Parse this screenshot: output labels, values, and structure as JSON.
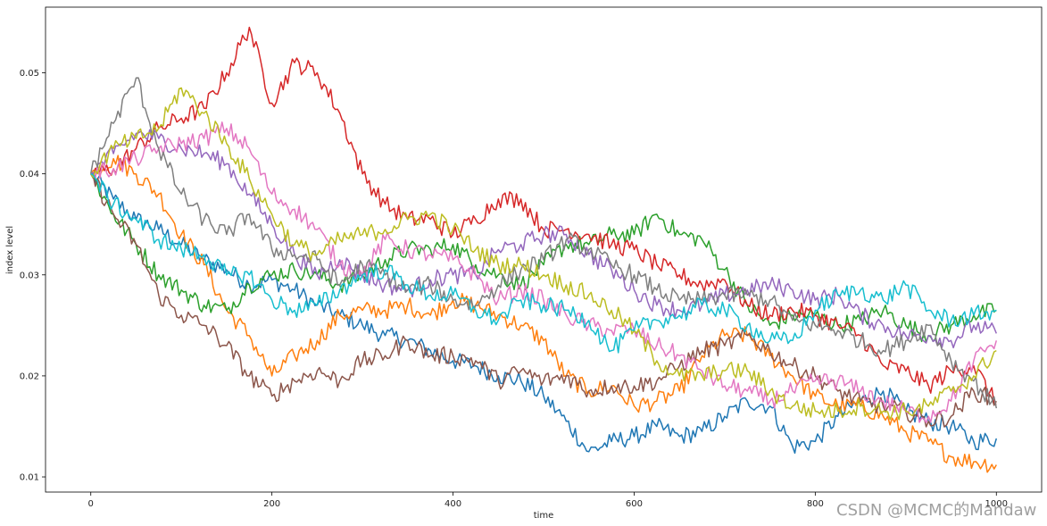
{
  "chart_data": {
    "type": "line",
    "title": "",
    "xlabel": "time",
    "ylabel": "index level",
    "xlim": [
      -50,
      1050
    ],
    "ylim": [
      0.0085,
      0.0565
    ],
    "xticks": [
      0,
      200,
      400,
      600,
      800,
      1000
    ],
    "yticks": [
      0.01,
      0.02,
      0.03,
      0.04,
      0.05
    ],
    "xtick_labels": [
      "0",
      "200",
      "400",
      "600",
      "800",
      "1000"
    ],
    "ytick_labels": [
      "0.01",
      "0.02",
      "0.03",
      "0.04",
      "0.05"
    ],
    "grid": false,
    "legend": "none",
    "colors": [
      "#1f77b4",
      "#ff7f0e",
      "#2ca02c",
      "#d62728",
      "#9467bd",
      "#8c564b",
      "#e377c2",
      "#7f7f7f",
      "#bcbd22",
      "#17becf"
    ],
    "x": [
      0,
      25,
      50,
      75,
      100,
      125,
      150,
      175,
      200,
      225,
      250,
      275,
      300,
      325,
      350,
      375,
      400,
      425,
      450,
      475,
      500,
      525,
      550,
      575,
      600,
      625,
      650,
      675,
      700,
      725,
      750,
      775,
      800,
      825,
      850,
      875,
      900,
      925,
      950,
      975,
      1000
    ],
    "series": [
      {
        "values": [
          0.04,
          0.0375,
          0.0355,
          0.0345,
          0.033,
          0.0315,
          0.0305,
          0.029,
          0.0295,
          0.0285,
          0.027,
          0.026,
          0.025,
          0.024,
          0.0235,
          0.0225,
          0.0215,
          0.021,
          0.02,
          0.0195,
          0.018,
          0.0155,
          0.0125,
          0.0135,
          0.014,
          0.015,
          0.014,
          0.0145,
          0.016,
          0.0175,
          0.017,
          0.013,
          0.0135,
          0.016,
          0.0175,
          0.0185,
          0.0165,
          0.0155,
          0.015,
          0.0135,
          0.0138
        ]
      },
      {
        "values": [
          0.04,
          0.0415,
          0.04,
          0.038,
          0.034,
          0.031,
          0.0265,
          0.024,
          0.02,
          0.022,
          0.0235,
          0.026,
          0.0265,
          0.0265,
          0.027,
          0.026,
          0.0275,
          0.027,
          0.026,
          0.025,
          0.0235,
          0.02,
          0.0185,
          0.019,
          0.017,
          0.0175,
          0.0185,
          0.022,
          0.024,
          0.024,
          0.022,
          0.02,
          0.018,
          0.017,
          0.017,
          0.016,
          0.0145,
          0.0135,
          0.012,
          0.0115,
          0.0112
        ]
      },
      {
        "values": [
          0.04,
          0.036,
          0.033,
          0.03,
          0.0285,
          0.027,
          0.0265,
          0.029,
          0.03,
          0.0305,
          0.03,
          0.029,
          0.03,
          0.0315,
          0.0325,
          0.0325,
          0.033,
          0.031,
          0.03,
          0.029,
          0.031,
          0.033,
          0.033,
          0.034,
          0.034,
          0.036,
          0.034,
          0.0335,
          0.0305,
          0.027,
          0.025,
          0.026,
          0.026,
          0.025,
          0.0255,
          0.0265,
          0.025,
          0.024,
          0.025,
          0.026,
          0.0265
        ]
      },
      {
        "values": [
          0.04,
          0.0405,
          0.0425,
          0.0445,
          0.0455,
          0.0465,
          0.05,
          0.0545,
          0.047,
          0.051,
          0.05,
          0.046,
          0.04,
          0.037,
          0.0355,
          0.0355,
          0.034,
          0.0355,
          0.0375,
          0.0375,
          0.0345,
          0.0345,
          0.034,
          0.033,
          0.0325,
          0.031,
          0.03,
          0.029,
          0.0295,
          0.027,
          0.026,
          0.0265,
          0.026,
          0.025,
          0.024,
          0.021,
          0.0205,
          0.019,
          0.0205,
          0.021,
          0.0172
        ]
      },
      {
        "values": [
          0.04,
          0.042,
          0.044,
          0.0435,
          0.0425,
          0.042,
          0.041,
          0.038,
          0.035,
          0.032,
          0.03,
          0.0315,
          0.03,
          0.029,
          0.0285,
          0.0295,
          0.03,
          0.03,
          0.0325,
          0.033,
          0.034,
          0.034,
          0.032,
          0.0305,
          0.0285,
          0.027,
          0.0265,
          0.027,
          0.028,
          0.0285,
          0.029,
          0.0285,
          0.0275,
          0.028,
          0.026,
          0.025,
          0.024,
          0.024,
          0.0235,
          0.025,
          0.0242
        ]
      },
      {
        "values": [
          0.04,
          0.036,
          0.033,
          0.028,
          0.026,
          0.025,
          0.023,
          0.02,
          0.018,
          0.0195,
          0.0205,
          0.0195,
          0.0215,
          0.022,
          0.0235,
          0.022,
          0.022,
          0.0215,
          0.0195,
          0.0205,
          0.0195,
          0.02,
          0.0185,
          0.019,
          0.019,
          0.0195,
          0.021,
          0.0225,
          0.023,
          0.024,
          0.0225,
          0.021,
          0.02,
          0.0185,
          0.0175,
          0.017,
          0.0165,
          0.0155,
          0.016,
          0.0185,
          0.0175
        ]
      },
      {
        "values": [
          0.04,
          0.0405,
          0.0415,
          0.0425,
          0.043,
          0.0435,
          0.0445,
          0.0425,
          0.038,
          0.0365,
          0.0345,
          0.031,
          0.03,
          0.0335,
          0.0325,
          0.032,
          0.0315,
          0.03,
          0.0275,
          0.0285,
          0.0275,
          0.026,
          0.025,
          0.0245,
          0.0245,
          0.023,
          0.022,
          0.0205,
          0.019,
          0.0185,
          0.0175,
          0.0185,
          0.0195,
          0.0195,
          0.0185,
          0.0175,
          0.0165,
          0.016,
          0.0175,
          0.0215,
          0.0235
        ]
      },
      {
        "values": [
          0.04,
          0.045,
          0.0495,
          0.0425,
          0.038,
          0.0355,
          0.034,
          0.036,
          0.0325,
          0.032,
          0.0315,
          0.029,
          0.031,
          0.03,
          0.0285,
          0.029,
          0.0275,
          0.027,
          0.029,
          0.0305,
          0.0315,
          0.0335,
          0.0325,
          0.031,
          0.03,
          0.0285,
          0.0275,
          0.0275,
          0.028,
          0.028,
          0.0275,
          0.0255,
          0.025,
          0.0245,
          0.0235,
          0.0225,
          0.0235,
          0.025,
          0.0215,
          0.0195,
          0.0168
        ]
      },
      {
        "values": [
          0.04,
          0.0425,
          0.0435,
          0.0445,
          0.0485,
          0.046,
          0.043,
          0.0395,
          0.036,
          0.033,
          0.032,
          0.0335,
          0.034,
          0.0345,
          0.0355,
          0.036,
          0.0345,
          0.0325,
          0.031,
          0.031,
          0.03,
          0.029,
          0.028,
          0.0265,
          0.0245,
          0.0215,
          0.02,
          0.02,
          0.0205,
          0.0205,
          0.0185,
          0.017,
          0.0165,
          0.0165,
          0.017,
          0.0165,
          0.0165,
          0.017,
          0.0185,
          0.02,
          0.0225
        ]
      },
      {
        "values": [
          0.04,
          0.037,
          0.0355,
          0.0335,
          0.0325,
          0.032,
          0.03,
          0.03,
          0.0275,
          0.0265,
          0.027,
          0.0285,
          0.03,
          0.0305,
          0.029,
          0.028,
          0.028,
          0.0265,
          0.0255,
          0.0275,
          0.027,
          0.0265,
          0.0255,
          0.0225,
          0.0245,
          0.0255,
          0.026,
          0.027,
          0.0265,
          0.025,
          0.0235,
          0.0235,
          0.0265,
          0.028,
          0.0285,
          0.0275,
          0.029,
          0.0265,
          0.0255,
          0.026,
          0.0265
        ]
      }
    ]
  },
  "watermark": "CSDN @MCMC的Mandaw"
}
